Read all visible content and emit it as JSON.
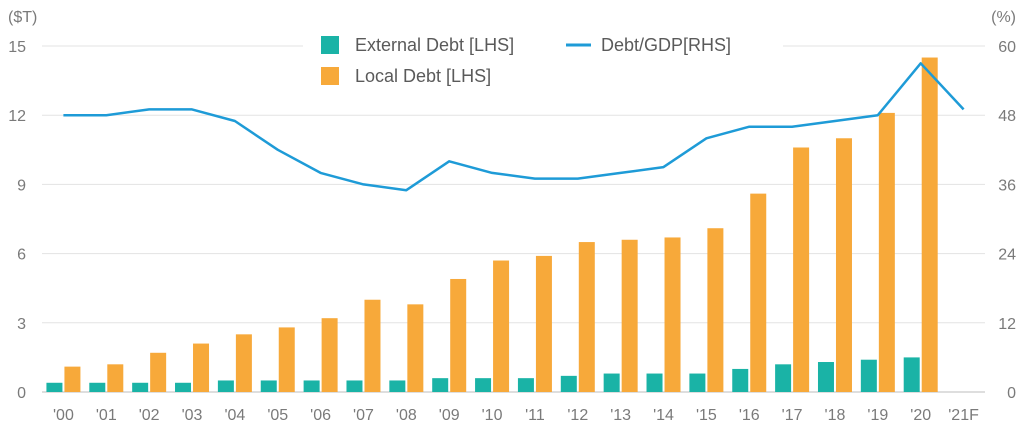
{
  "chart_data": {
    "type": "bar",
    "categories": [
      "'00",
      "'01",
      "'02",
      "'03",
      "'04",
      "'05",
      "'06",
      "'07",
      "'08",
      "'09",
      "'10",
      "'11",
      "'12",
      "'13",
      "'14",
      "'15",
      "'16",
      "'17",
      "'18",
      "'19",
      "'20",
      "'21F"
    ],
    "series": [
      {
        "name": "External Debt [LHS]",
        "axis": "left",
        "type": "bar",
        "color": "#1ab3a6",
        "values": [
          0.4,
          0.4,
          0.4,
          0.4,
          0.5,
          0.5,
          0.5,
          0.5,
          0.5,
          0.6,
          0.6,
          0.6,
          0.7,
          0.8,
          0.8,
          0.8,
          1.0,
          1.2,
          1.3,
          1.4,
          1.5,
          null
        ]
      },
      {
        "name": "Local Debt [LHS]",
        "axis": "left",
        "type": "bar",
        "color": "#f7a93a",
        "values": [
          1.1,
          1.2,
          1.7,
          2.1,
          2.5,
          2.8,
          3.2,
          4.0,
          3.8,
          4.9,
          5.7,
          5.9,
          6.5,
          6.6,
          6.7,
          7.1,
          8.6,
          10.6,
          11.0,
          12.1,
          14.5,
          null
        ]
      },
      {
        "name": "Debt/GDP[RHS]",
        "axis": "right",
        "type": "line",
        "color": "#1e9bd7",
        "values": [
          48,
          48,
          49,
          49,
          47,
          42,
          38,
          36,
          35,
          40,
          38,
          37,
          37,
          38,
          39,
          44,
          46,
          46,
          47,
          48,
          57,
          49
        ]
      }
    ],
    "left_axis": {
      "unit_label": "($T)",
      "ticks": [
        "0",
        "3",
        "6",
        "9",
        "12",
        "15"
      ],
      "range": [
        0,
        15
      ]
    },
    "right_axis": {
      "unit_label": "(%)",
      "ticks": [
        "0",
        "12",
        "24",
        "36",
        "48",
        "60"
      ],
      "range": [
        0,
        60
      ]
    },
    "grid": true,
    "legend_position": "top-center"
  }
}
